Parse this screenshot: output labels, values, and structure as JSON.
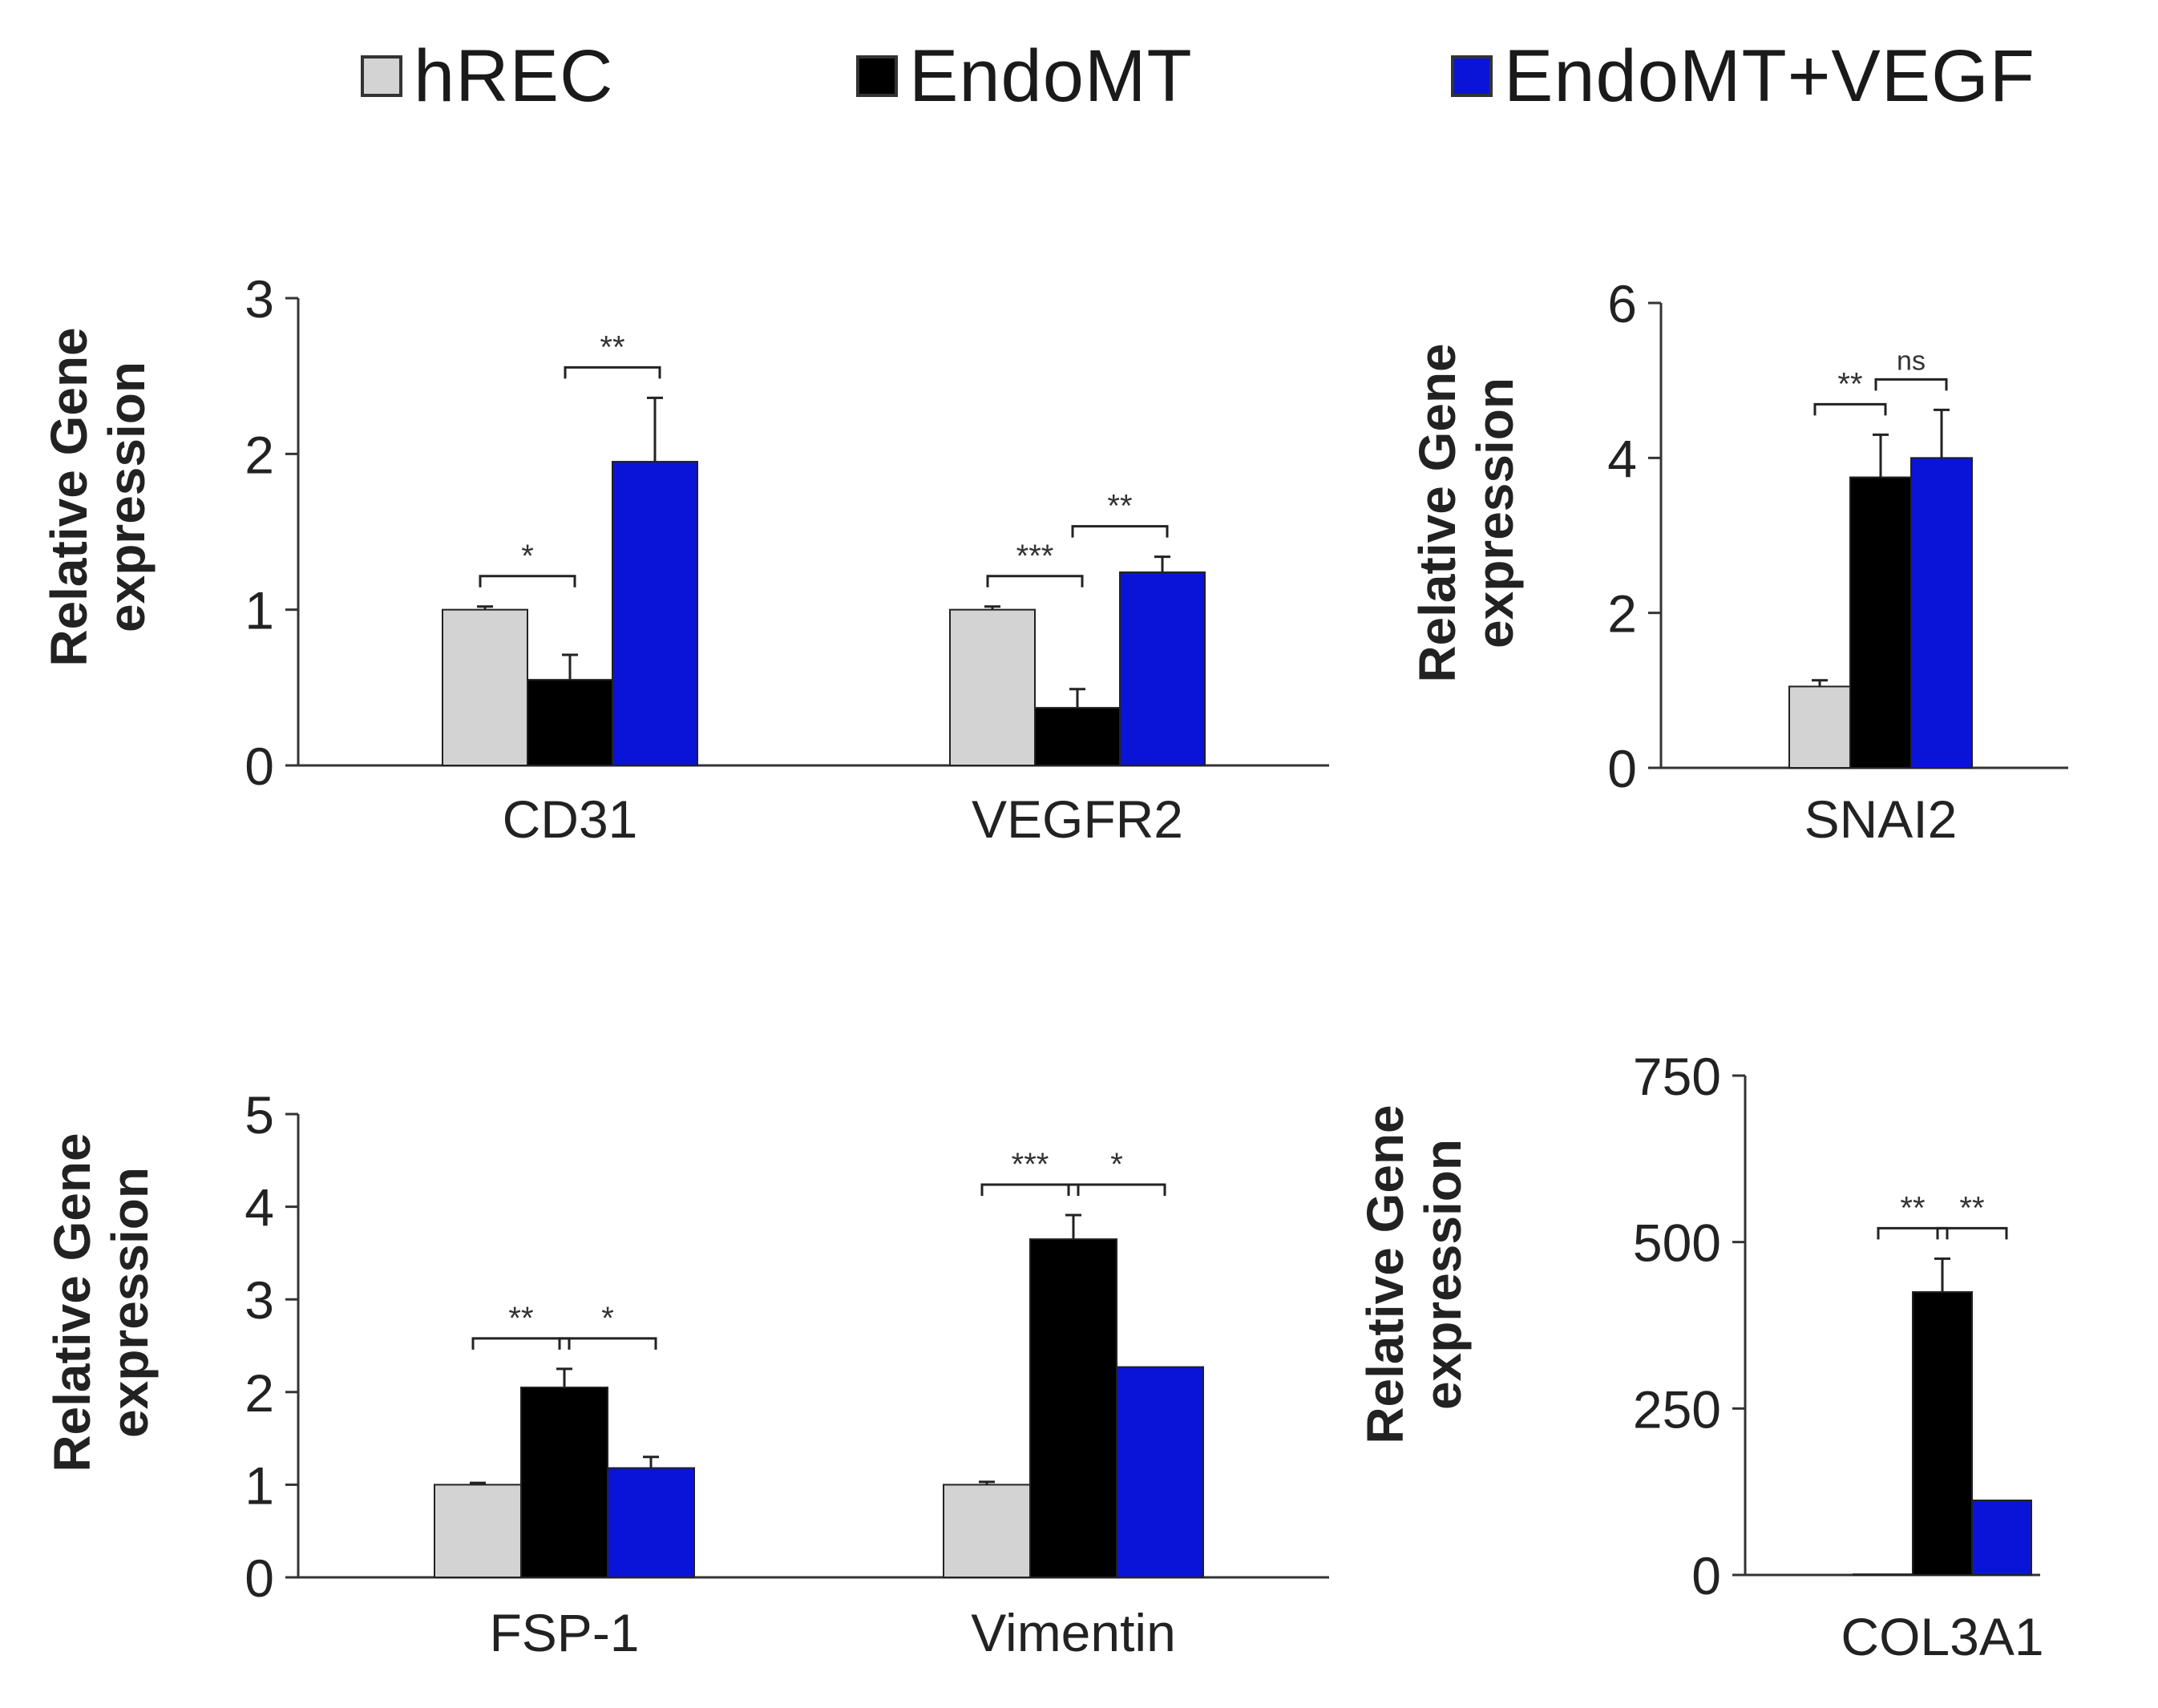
{
  "legend": {
    "items": [
      {
        "label": "hREC",
        "color": "#d3d3d3"
      },
      {
        "label": "EndoMT",
        "color": "#000000"
      },
      {
        "label": "EndoMT+VEGF",
        "color": "#0a14d8"
      }
    ]
  },
  "chart_data": [
    {
      "type": "bar",
      "ylabel": [
        "Relative Gene",
        "expression"
      ],
      "ylim": [
        0,
        3
      ],
      "yticks": [
        0,
        1,
        2,
        3
      ],
      "categories": [
        "CD31",
        "VEGFR2"
      ],
      "series": [
        {
          "name": "hREC",
          "values": [
            1.0,
            1.0
          ],
          "errors": [
            0.02,
            0.02
          ]
        },
        {
          "name": "EndoMT",
          "values": [
            0.55,
            0.37
          ],
          "errors": [
            0.16,
            0.12
          ]
        },
        {
          "name": "EndoMT+VEGF",
          "values": [
            1.95,
            1.24
          ],
          "errors": [
            0.41,
            0.1
          ]
        }
      ],
      "significance": [
        {
          "category": 0,
          "from": 0,
          "to": 1,
          "label": "*"
        },
        {
          "category": 0,
          "from": 1,
          "to": 2,
          "label": "**"
        },
        {
          "category": 1,
          "from": 0,
          "to": 1,
          "label": "***"
        },
        {
          "category": 1,
          "from": 1,
          "to": 2,
          "label": "**"
        }
      ]
    },
    {
      "type": "bar",
      "ylabel": [
        "Relative Gene",
        "expression"
      ],
      "ylim": [
        0,
        6
      ],
      "yticks": [
        0,
        2,
        4,
        6
      ],
      "categories": [
        "SNAI2"
      ],
      "series": [
        {
          "name": "hREC",
          "values": [
            1.05
          ],
          "errors": [
            0.08
          ]
        },
        {
          "name": "EndoMT",
          "values": [
            3.75
          ],
          "errors": [
            0.55
          ]
        },
        {
          "name": "EndoMT+VEGF",
          "values": [
            4.0
          ],
          "errors": [
            0.62
          ]
        }
      ],
      "significance": [
        {
          "category": 0,
          "from": 0,
          "to": 1,
          "label": "**"
        },
        {
          "category": 0,
          "from": 1,
          "to": 2,
          "label": "ns"
        }
      ]
    },
    {
      "type": "bar",
      "ylabel": [
        "Relative Gene",
        "expression"
      ],
      "ylim": [
        0,
        5
      ],
      "yticks": [
        0,
        1,
        2,
        3,
        4,
        5
      ],
      "categories": [
        "FSP-1",
        "Vimentin"
      ],
      "series": [
        {
          "name": "hREC",
          "values": [
            1.0,
            1.0
          ],
          "errors": [
            0.02,
            0.03
          ]
        },
        {
          "name": "EndoMT",
          "values": [
            2.05,
            3.65
          ],
          "errors": [
            0.2,
            0.26
          ]
        },
        {
          "name": "EndoMT+VEGF",
          "values": [
            1.18,
            2.27
          ],
          "errors": [
            0.12,
            0.0
          ]
        }
      ],
      "significance": [
        {
          "category": 0,
          "from": 0,
          "to": 1,
          "label": "**"
        },
        {
          "category": 0,
          "from": 1,
          "to": 2,
          "label": "*"
        },
        {
          "category": 1,
          "from": 0,
          "to": 1,
          "label": "***"
        },
        {
          "category": 1,
          "from": 1,
          "to": 2,
          "label": "*"
        }
      ]
    },
    {
      "type": "bar",
      "ylabel": [
        "Relative Gene",
        "expression"
      ],
      "ylim": [
        0,
        750
      ],
      "yticks": [
        0,
        250,
        500,
        750
      ],
      "categories": [
        "COL3A1"
      ],
      "series": [
        {
          "name": "hREC",
          "values": [
            1
          ],
          "errors": [
            0
          ]
        },
        {
          "name": "EndoMT",
          "values": [
            425
          ],
          "errors": [
            50
          ]
        },
        {
          "name": "EndoMT+VEGF",
          "values": [
            112
          ],
          "errors": [
            0
          ]
        }
      ],
      "significance": [
        {
          "category": 0,
          "from": 0,
          "to": 1,
          "label": "**"
        },
        {
          "category": 0,
          "from": 1,
          "to": 2,
          "label": "**"
        }
      ]
    }
  ]
}
